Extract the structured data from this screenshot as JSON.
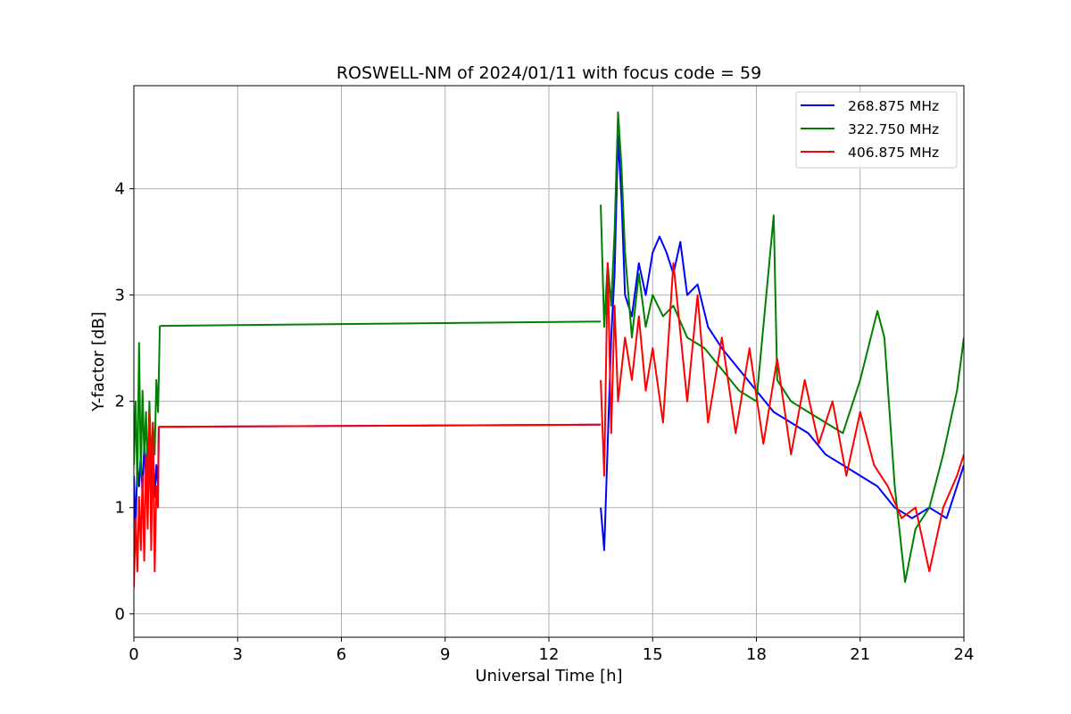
{
  "chart_data": {
    "type": "line",
    "title": "ROSWELL-NM of 2024/01/11 with focus code = 59",
    "xlabel": "Universal Time [h]",
    "ylabel": "Y-factor [dB]",
    "xlim": [
      0,
      24
    ],
    "ylim": [
      -0.22,
      4.97
    ],
    "xticks": [
      0,
      3,
      6,
      9,
      12,
      15,
      18,
      21,
      24
    ],
    "yticks": [
      0,
      1,
      2,
      3,
      4
    ],
    "grid": true,
    "legend_position": "top-right",
    "series": [
      {
        "name": "268.875 MHz",
        "color": "#0000ff",
        "segments": [
          {
            "x": [
              0.0,
              0.05,
              0.1,
              0.15,
              0.2,
              0.25,
              0.3,
              0.35,
              0.4,
              0.45,
              0.5,
              0.55,
              0.6,
              0.65,
              0.7,
              0.72
            ],
            "y": [
              1.3,
              0.8,
              1.4,
              1.2,
              1.5,
              1.1,
              1.6,
              1.3,
              1.0,
              1.5,
              1.2,
              1.6,
              1.1,
              1.4,
              1.2,
              1.76
            ]
          },
          {
            "x": [
              0.72,
              13.5
            ],
            "y": [
              1.76,
              1.78
            ]
          },
          {
            "x": [
              13.5,
              13.6,
              13.7,
              13.8,
              13.9,
              14.0,
              14.1,
              14.2,
              14.4,
              14.6,
              14.8,
              15.0,
              15.2,
              15.4,
              15.6,
              15.8,
              16.0,
              16.3,
              16.6,
              17.0,
              17.5,
              18.0,
              18.5,
              19.0,
              19.5,
              20.0,
              20.5,
              21.0,
              21.5,
              22.0,
              22.5,
              23.0,
              23.5,
              24.0
            ],
            "y": [
              1.0,
              0.6,
              1.6,
              2.6,
              3.2,
              4.5,
              3.9,
              3.0,
              2.8,
              3.3,
              3.0,
              3.4,
              3.55,
              3.4,
              3.2,
              3.5,
              3.0,
              3.1,
              2.7,
              2.5,
              2.3,
              2.1,
              1.9,
              1.8,
              1.7,
              1.5,
              1.4,
              1.3,
              1.2,
              1.0,
              0.9,
              1.0,
              0.9,
              1.4
            ]
          }
        ]
      },
      {
        "name": "322.750 MHz",
        "color": "#008000",
        "segments": [
          {
            "x": [
              0.0,
              0.05,
              0.1,
              0.15,
              0.2,
              0.25,
              0.3,
              0.35,
              0.4,
              0.45,
              0.5,
              0.55,
              0.6,
              0.65,
              0.7,
              0.72,
              0.75
            ],
            "y": [
              1.4,
              2.0,
              1.2,
              2.55,
              1.3,
              2.1,
              1.5,
              1.9,
              1.3,
              2.0,
              1.4,
              1.8,
              1.5,
              2.2,
              1.9,
              2.2,
              2.71
            ]
          },
          {
            "x": [
              0.75,
              13.5
            ],
            "y": [
              2.71,
              2.75
            ]
          },
          {
            "x": [
              13.5,
              13.6,
              13.7,
              13.8,
              13.9,
              14.0,
              14.1,
              14.2,
              14.4,
              14.6,
              14.8,
              15.0,
              15.3,
              15.6,
              16.0,
              16.5,
              17.0,
              17.5,
              18.0,
              18.5,
              18.6,
              19.0,
              19.5,
              20.0,
              20.5,
              21.0,
              21.5,
              21.7,
              22.0,
              22.3,
              22.6,
              23.0,
              23.4,
              23.8,
              24.0
            ],
            "y": [
              3.85,
              2.7,
              3.3,
              2.9,
              3.6,
              4.72,
              4.2,
              3.4,
              2.6,
              3.2,
              2.7,
              3.0,
              2.8,
              2.9,
              2.6,
              2.5,
              2.3,
              2.1,
              2.0,
              3.75,
              2.2,
              2.0,
              1.9,
              1.8,
              1.7,
              2.2,
              2.85,
              2.6,
              1.2,
              0.3,
              0.8,
              1.0,
              1.5,
              2.1,
              2.6
            ]
          }
        ]
      },
      {
        "name": "406.875 MHz",
        "color": "#ff0000",
        "segments": [
          {
            "x": [
              0.0,
              0.05,
              0.1,
              0.15,
              0.2,
              0.25,
              0.3,
              0.35,
              0.4,
              0.45,
              0.5,
              0.55,
              0.6,
              0.65,
              0.7,
              0.72
            ],
            "y": [
              0.25,
              0.9,
              0.4,
              1.1,
              0.6,
              1.3,
              0.5,
              1.5,
              0.8,
              1.9,
              0.6,
              1.8,
              0.4,
              1.2,
              1.0,
              1.76
            ]
          },
          {
            "x": [
              0.72,
              13.5
            ],
            "y": [
              1.76,
              1.78
            ]
          },
          {
            "x": [
              13.5,
              13.6,
              13.7,
              13.8,
              13.9,
              14.0,
              14.2,
              14.4,
              14.6,
              14.8,
              15.0,
              15.3,
              15.6,
              16.0,
              16.3,
              16.6,
              17.0,
              17.4,
              17.8,
              18.2,
              18.6,
              19.0,
              19.4,
              19.8,
              20.2,
              20.6,
              21.0,
              21.4,
              21.8,
              22.2,
              22.6,
              23.0,
              23.4,
              23.8,
              24.0
            ],
            "y": [
              2.2,
              1.3,
              3.3,
              1.7,
              2.9,
              2.0,
              2.6,
              2.2,
              2.8,
              2.1,
              2.5,
              1.8,
              3.3,
              2.0,
              3.0,
              1.8,
              2.6,
              1.7,
              2.5,
              1.6,
              2.4,
              1.5,
              2.2,
              1.6,
              2.0,
              1.3,
              1.9,
              1.4,
              1.2,
              0.9,
              1.0,
              0.4,
              1.0,
              1.3,
              1.5
            ]
          }
        ]
      }
    ]
  }
}
